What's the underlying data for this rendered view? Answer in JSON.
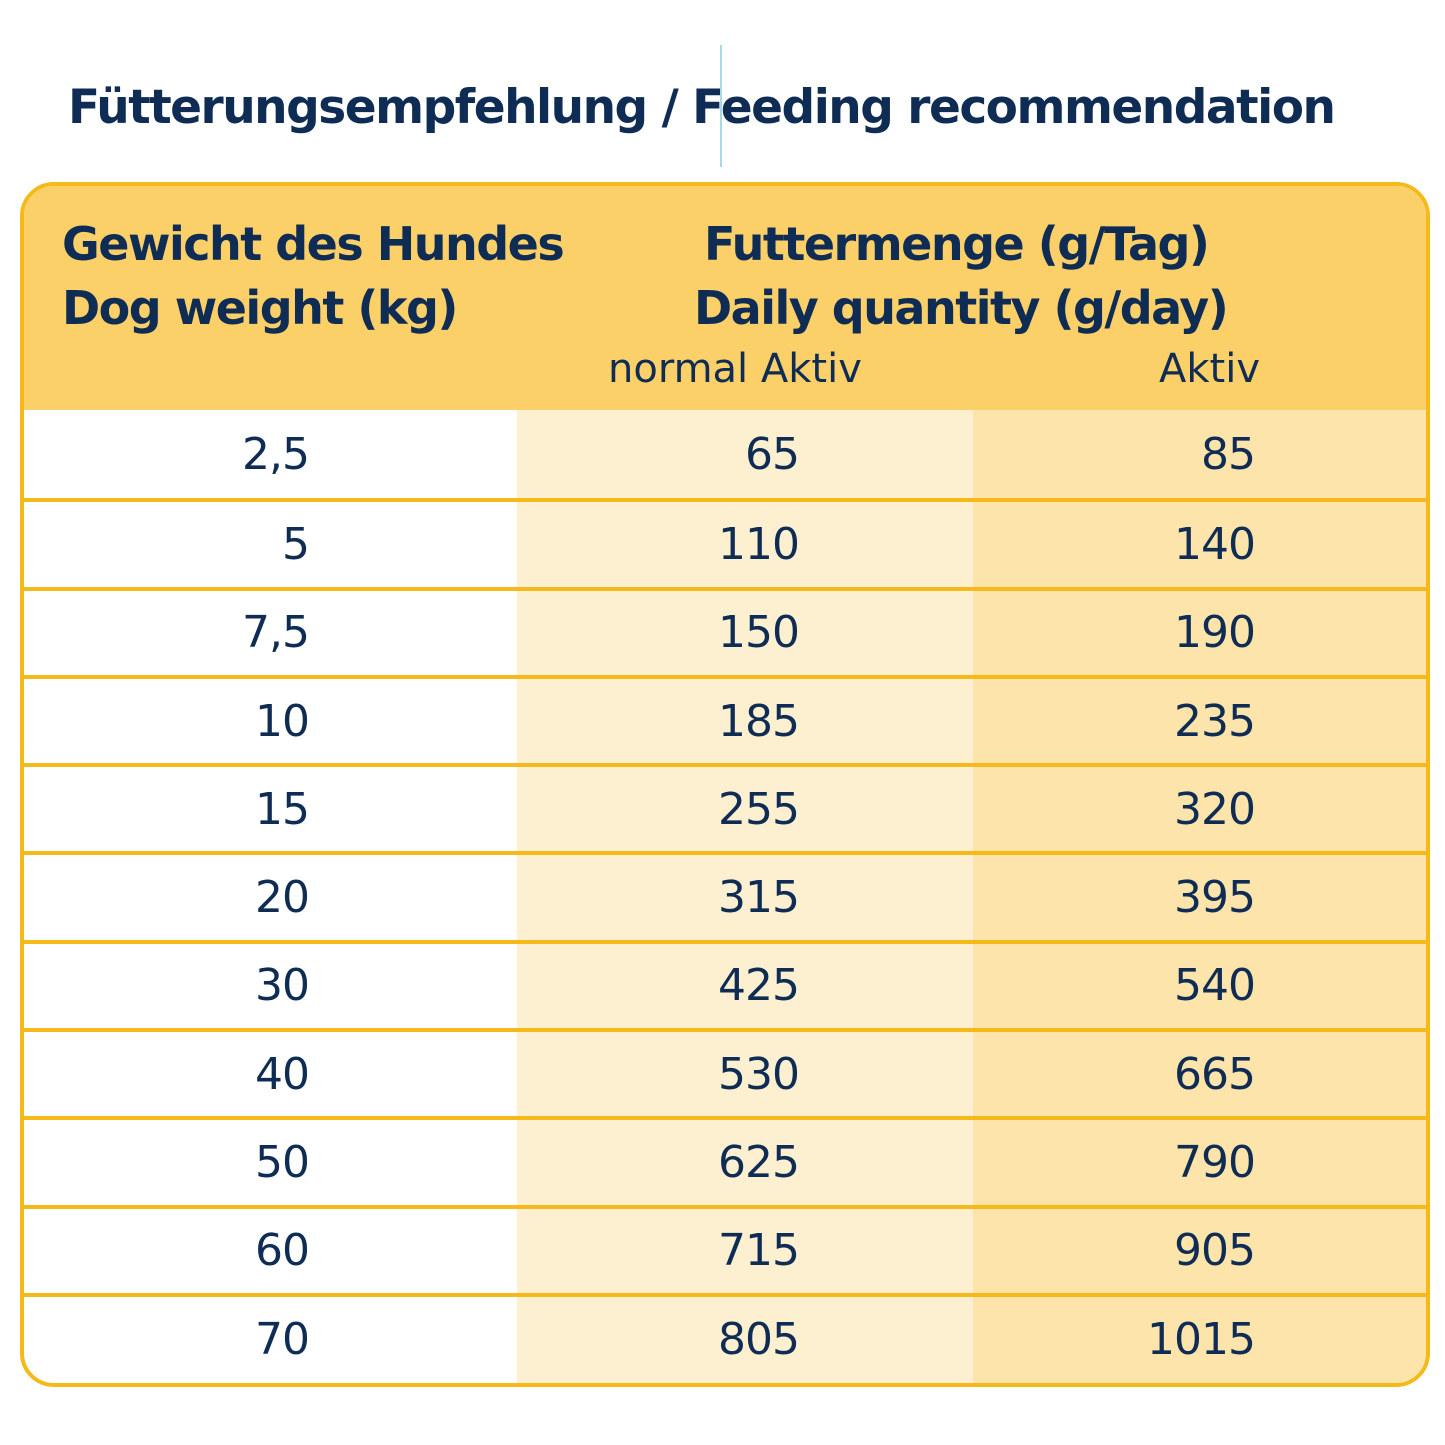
{
  "title": "Fütterungsempfehlung / Feeding recommendation",
  "header": {
    "weight_de": "Gewicht des Hundes",
    "weight_en": "Dog weight (kg)",
    "qty_de": "Futtermenge (g/Tag)",
    "qty_en": "Daily quantity (g/day)",
    "col_normal": "normal Aktiv",
    "col_active": "Aktiv"
  },
  "rows": [
    {
      "weight": "2,5",
      "normal": "65",
      "active": "85"
    },
    {
      "weight": "5",
      "normal": "110",
      "active": "140"
    },
    {
      "weight": "7,5",
      "normal": "150",
      "active": "190"
    },
    {
      "weight": "10",
      "normal": "185",
      "active": "235"
    },
    {
      "weight": "15",
      "normal": "255",
      "active": "320"
    },
    {
      "weight": "20",
      "normal": "315",
      "active": "395"
    },
    {
      "weight": "30",
      "normal": "425",
      "active": "540"
    },
    {
      "weight": "40",
      "normal": "530",
      "active": "665"
    },
    {
      "weight": "50",
      "normal": "625",
      "active": "790"
    },
    {
      "weight": "60",
      "normal": "715",
      "active": "905"
    },
    {
      "weight": "70",
      "normal": "805",
      "active": "1015"
    }
  ],
  "colors": {
    "text": "#0f2c55",
    "border": "#f5b919",
    "header": "#fcd068",
    "col_normal": "#fdf0d0",
    "col_active": "#fde4aa"
  }
}
